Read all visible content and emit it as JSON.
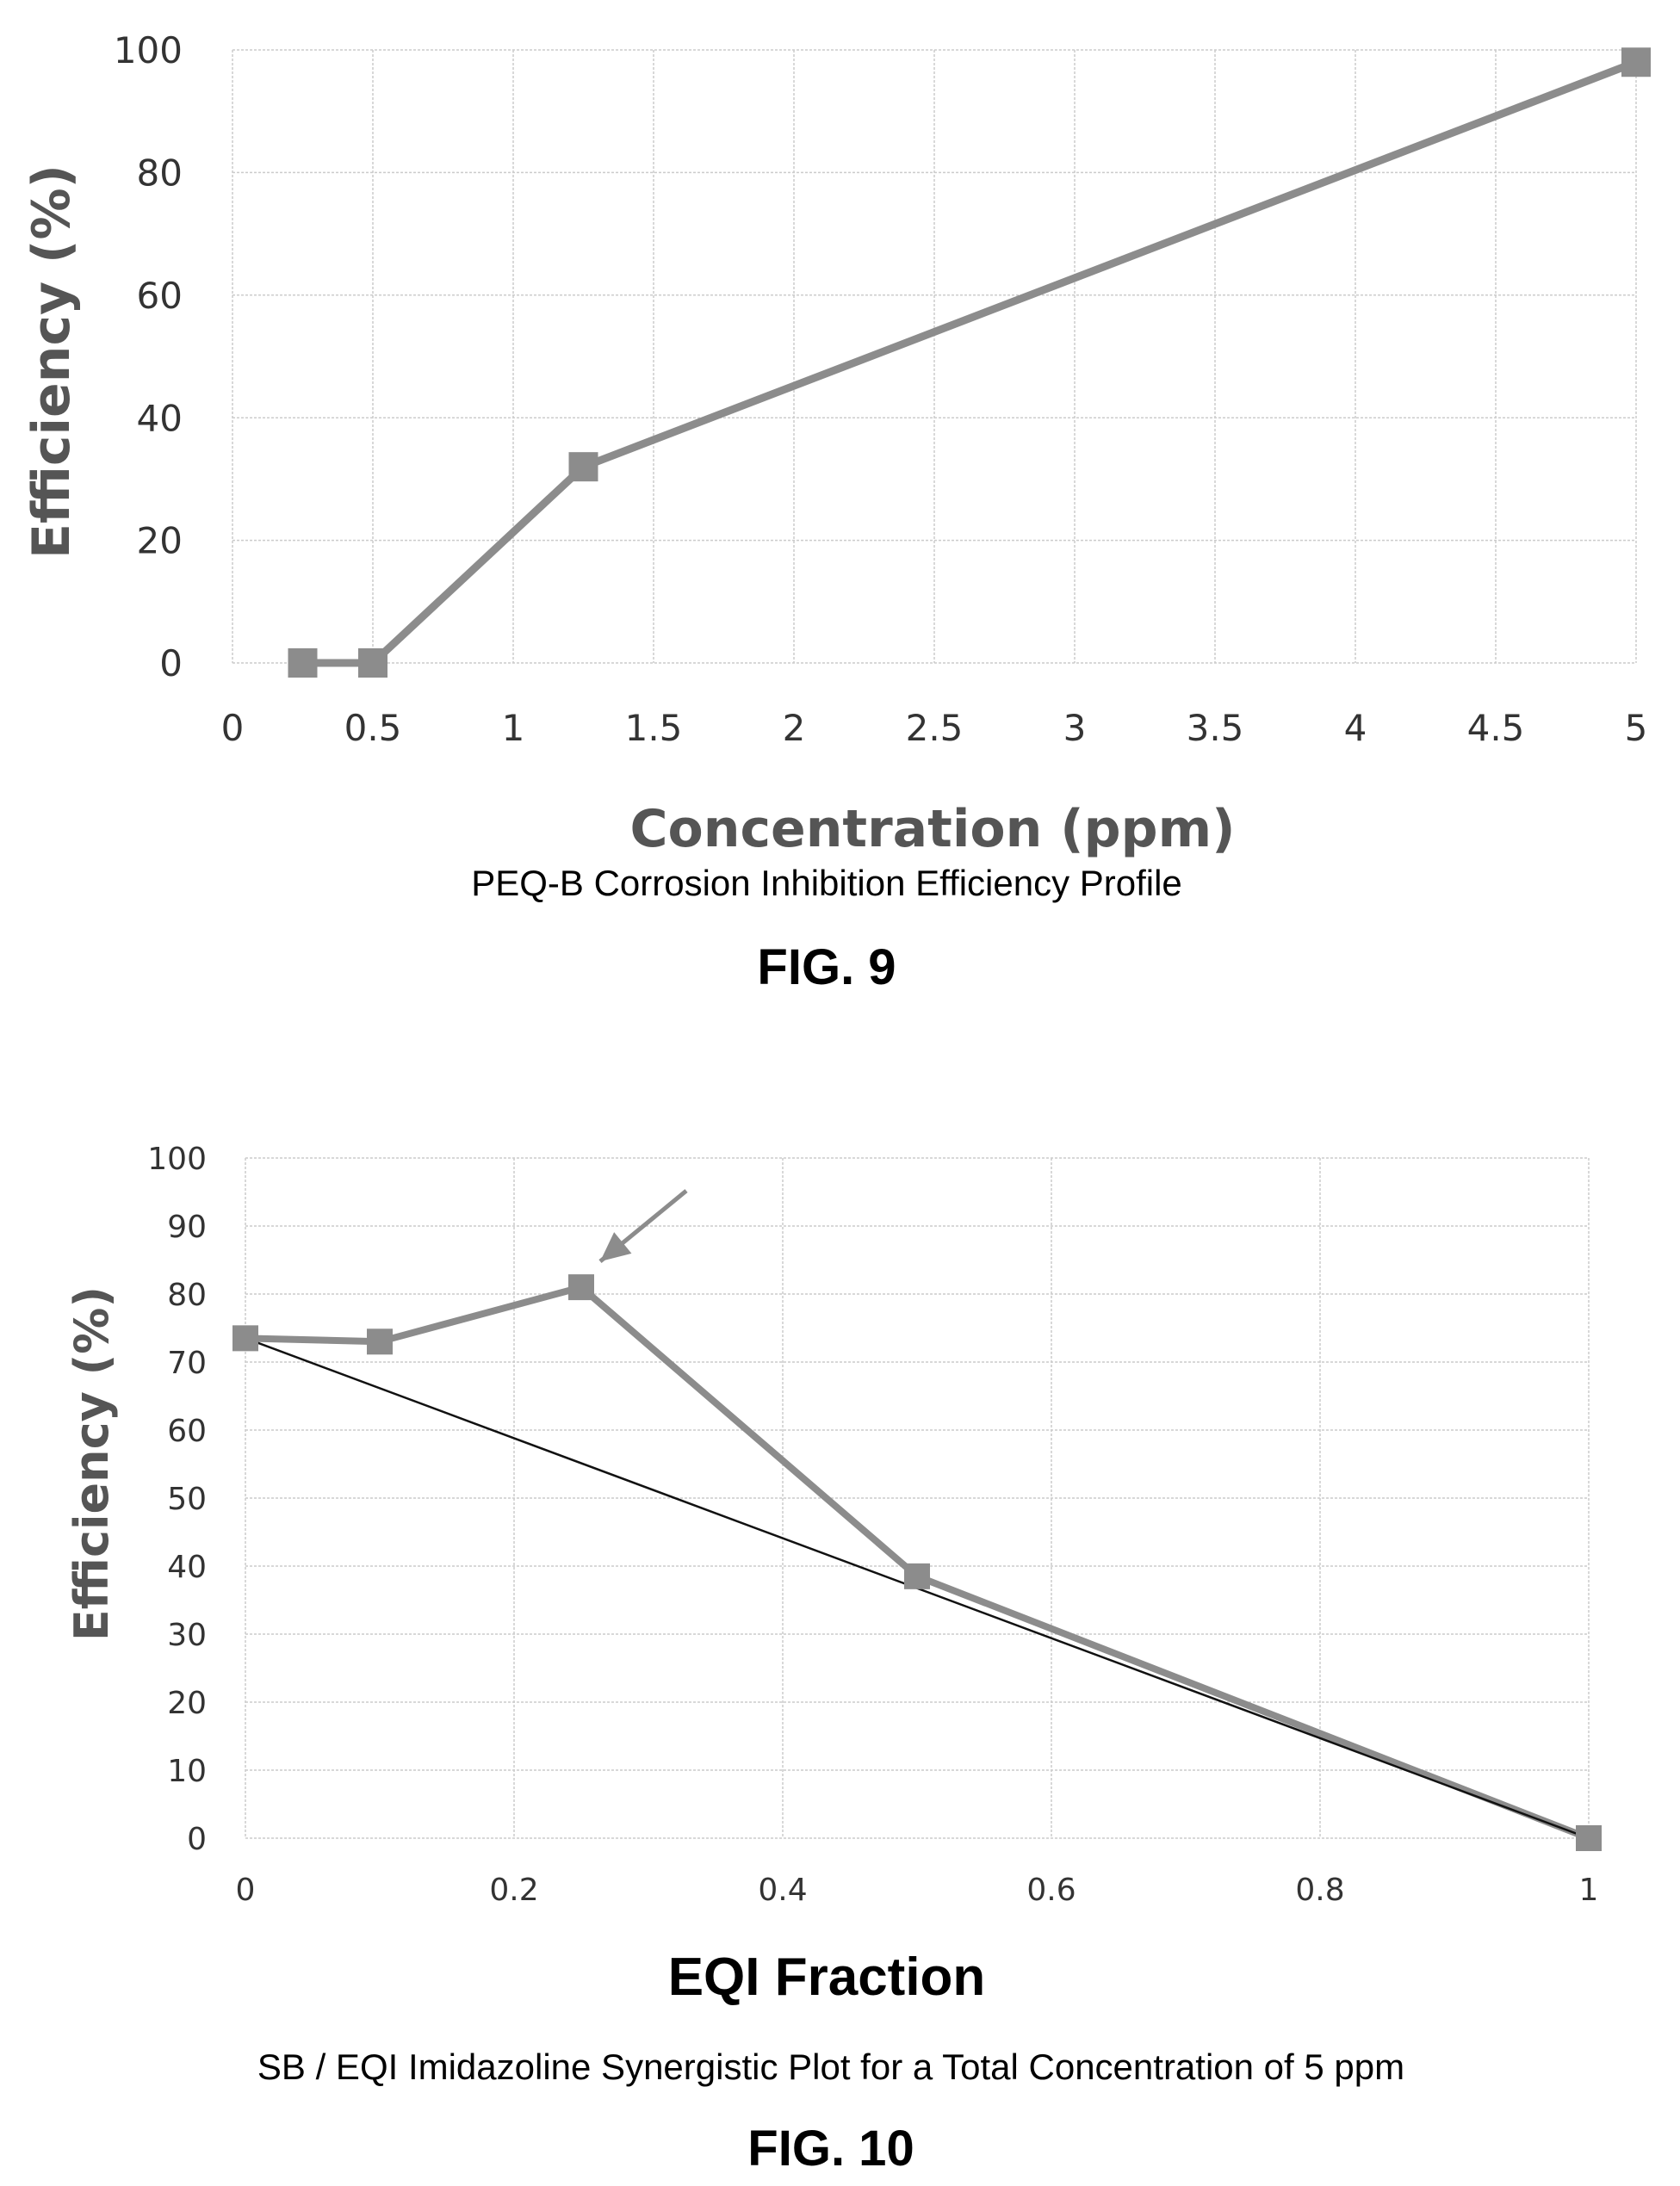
{
  "chart_data": [
    {
      "type": "line",
      "title": "",
      "xlabel": "Concentration (ppm)",
      "ylabel": "Efficiency (%)",
      "xlim": [
        0,
        5
      ],
      "ylim": [
        0,
        100
      ],
      "x_ticks": [
        "0",
        "0.5",
        "1",
        "1.5",
        "2",
        "2.5",
        "3",
        "3.5",
        "4",
        "4.5",
        "5"
      ],
      "y_ticks": [
        "0",
        "20",
        "40",
        "60",
        "80",
        "100"
      ],
      "grid": true,
      "series": [
        {
          "x": [
            0.25,
            0.5,
            1.25,
            5
          ],
          "y": [
            0,
            0,
            32,
            98
          ],
          "color": "#8c8c8c",
          "marker": "square"
        }
      ],
      "caption": "PEQ-B Corrosion Inhibition Efficiency Profile",
      "figure_label": "FIG. 9"
    },
    {
      "type": "line",
      "title": "",
      "xlabel": "EQI Fraction",
      "ylabel": "Efficiency (%)",
      "xlim": [
        0,
        1
      ],
      "ylim": [
        0,
        100
      ],
      "x_ticks": [
        "0",
        "0.2",
        "0.4",
        "0.6",
        "0.8",
        "1"
      ],
      "y_ticks": [
        "0",
        "10",
        "20",
        "30",
        "40",
        "50",
        "60",
        "70",
        "80",
        "90",
        "100"
      ],
      "grid": true,
      "series": [
        {
          "x": [
            0,
            0.1,
            0.25,
            0.5,
            1
          ],
          "y": [
            73.5,
            73,
            81,
            38.5,
            0
          ],
          "color": "#8c8c8c",
          "marker": "square"
        },
        {
          "x": [
            0,
            1
          ],
          "y": [
            73.5,
            0
          ],
          "color": "#111111",
          "marker": "none"
        }
      ],
      "annotation": {
        "type": "arrow",
        "points_to": {
          "x": 0.25,
          "y": 81
        }
      },
      "caption": "SB / EQI Imidazoline Synergistic Plot for a Total Concentration of 5 ppm",
      "figure_label": "FIG. 10"
    }
  ]
}
